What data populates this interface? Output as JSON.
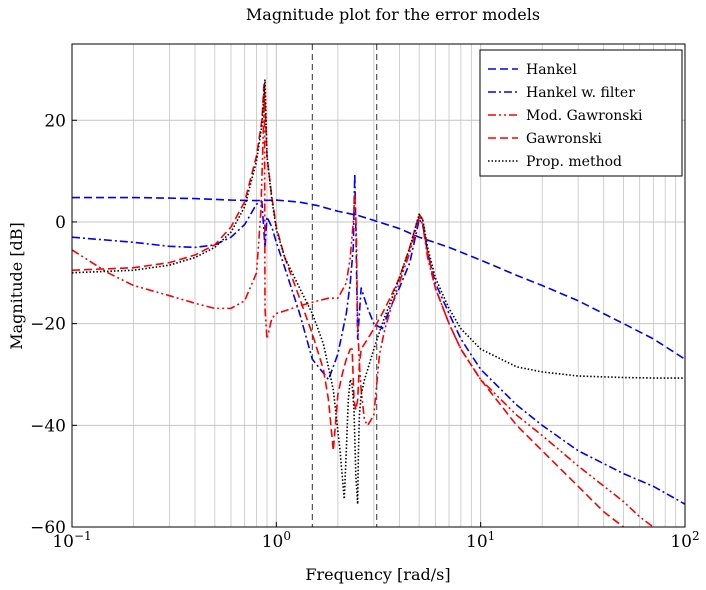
{
  "chart_data": {
    "type": "line",
    "title": "Magnitude plot for the error models",
    "xlabel": "Frequency [rad/s]",
    "ylabel": "Magnitude [dB]",
    "xscale": "log",
    "xlim": [
      0.1,
      100
    ],
    "ylim": [
      -60,
      35
    ],
    "grid": true,
    "legend_position": "top-right",
    "x_ticks": [
      {
        "value": 0.1,
        "base": "10",
        "exp": "−1"
      },
      {
        "value": 1,
        "base": "10",
        "exp": "0"
      },
      {
        "value": 10,
        "base": "10",
        "exp": "1"
      },
      {
        "value": 100,
        "base": "10",
        "exp": "2"
      }
    ],
    "y_ticks": [
      {
        "value": -60,
        "label": "−60"
      },
      {
        "value": -40,
        "label": "−40"
      },
      {
        "value": -20,
        "label": "−20"
      },
      {
        "value": 0,
        "label": "0"
      },
      {
        "value": 20,
        "label": "20"
      }
    ],
    "vertical_lines": [
      1.5,
      3.1
    ],
    "series": [
      {
        "name": "Hankel",
        "color": "#0000ff",
        "dash": "dashed",
        "x": [
          0.1,
          0.2,
          0.4,
          0.6,
          0.8,
          1.0,
          1.3,
          1.6,
          2.0,
          2.5,
          3.0,
          4.0,
          5.0,
          7.0,
          10,
          15,
          20,
          30,
          50,
          70,
          100
        ],
        "y": [
          4.8,
          4.8,
          4.6,
          4.3,
          4.2,
          4.3,
          3.9,
          3.2,
          2.1,
          1.3,
          0.3,
          -1.3,
          -3.0,
          -5.0,
          -7.5,
          -10.5,
          -12.5,
          -15.5,
          -20.0,
          -23.0,
          -27.0
        ]
      },
      {
        "name": "Hankel w. filter",
        "color": "#0000ff",
        "dash": "dashdot",
        "x": [
          0.1,
          0.2,
          0.3,
          0.4,
          0.5,
          0.6,
          0.7,
          0.8,
          0.85,
          0.88,
          0.9,
          0.95,
          1.0,
          1.1,
          1.3,
          1.5,
          1.8,
          2.0,
          2.2,
          2.3,
          2.38,
          2.42,
          2.46,
          2.5,
          2.6,
          2.8,
          3.0,
          3.3,
          3.6,
          4.0,
          4.5,
          5.0,
          5.2,
          5.5,
          6.0,
          7.0,
          8.0,
          10,
          15,
          20,
          30,
          50,
          70,
          100
        ],
        "y": [
          -3.0,
          -4.0,
          -4.8,
          -5.0,
          -4.5,
          -3.0,
          -0.5,
          3.5,
          4.0,
          -5.0,
          1.0,
          -1.0,
          -4.0,
          -9.0,
          -18.0,
          -27.0,
          -31.0,
          -26.0,
          -18.0,
          -12.0,
          -5.0,
          9.5,
          -5.0,
          -23.0,
          -13.0,
          -17.0,
          -20.0,
          -21.0,
          -17.0,
          -13.0,
          -8.0,
          0.5,
          -0.5,
          -6.0,
          -12.0,
          -18.0,
          -23.0,
          -29.0,
          -36.0,
          -40.0,
          -45.0,
          -49.5,
          -52.0,
          -55.5
        ]
      },
      {
        "name": "Mod. Gawronski",
        "color": "#ff0000",
        "dash": "dashdotdot",
        "x": [
          0.1,
          0.15,
          0.2,
          0.3,
          0.4,
          0.5,
          0.6,
          0.7,
          0.8,
          0.84,
          0.87,
          0.875,
          0.88,
          0.9,
          0.95,
          1.0,
          1.1,
          1.3,
          1.6,
          1.8,
          2.0,
          2.2,
          2.3,
          2.38,
          2.42,
          2.46,
          2.5,
          2.55,
          2.6,
          2.7,
          2.8,
          3.0,
          3.2,
          3.4,
          3.7,
          4.0,
          4.5,
          5.0,
          5.2,
          5.5,
          6.0,
          7.0,
          8.0,
          10,
          15,
          20,
          30,
          50,
          60,
          70
        ],
        "y": [
          -5.5,
          -10.0,
          -12.5,
          -14.5,
          -16.0,
          -17.0,
          -17.0,
          -15.5,
          -10.0,
          2.0,
          22.0,
          27.0,
          -17.0,
          -23.0,
          -19.0,
          -18.0,
          -17.5,
          -16.5,
          -15.5,
          -15.0,
          -15.0,
          -12.0,
          -7.0,
          0.0,
          5.5,
          -1.0,
          -20.0,
          -28.0,
          -33.0,
          -39.0,
          -40.0,
          -38.0,
          -26.0,
          -21.0,
          -16.0,
          -12.0,
          -6.0,
          1.0,
          -0.5,
          -7.0,
          -13.0,
          -20.0,
          -25.0,
          -31.0,
          -38.0,
          -42.0,
          -48.0,
          -55.0,
          -58.0,
          -60.0
        ]
      },
      {
        "name": "Gawronski",
        "color": "#ff0000",
        "dash": "dashed",
        "x": [
          0.1,
          0.2,
          0.3,
          0.4,
          0.5,
          0.6,
          0.7,
          0.8,
          0.85,
          0.87,
          0.88,
          0.9,
          0.95,
          1.0,
          1.1,
          1.3,
          1.5,
          1.7,
          1.8,
          1.9,
          2.0,
          2.1,
          2.2,
          2.3,
          2.35,
          2.4,
          2.45,
          2.5,
          2.55,
          2.6,
          2.7,
          2.8,
          3.0,
          3.3,
          3.6,
          4.0,
          4.5,
          4.8,
          5.0,
          5.2,
          5.5,
          6.0,
          7.0,
          8.0,
          10,
          15,
          20,
          30,
          40,
          50
        ],
        "y": [
          -9.5,
          -9.0,
          -8.0,
          -6.5,
          -4.5,
          -1.0,
          4.0,
          13.0,
          20.0,
          27.0,
          24.0,
          13.0,
          5.0,
          -1.0,
          -7.0,
          -15.0,
          -22.0,
          -29.0,
          -35.0,
          -45.0,
          -34.0,
          -30.0,
          -27.0,
          -25.0,
          -25.0,
          -35.0,
          -37.0,
          -35.0,
          -28.0,
          -25.0,
          -24.0,
          -23.0,
          -21.0,
          -18.0,
          -15.0,
          -11.0,
          -5.0,
          -1.0,
          1.5,
          0.5,
          -6.0,
          -13.0,
          -20.0,
          -25.0,
          -31.0,
          -40.0,
          -45.0,
          -52.0,
          -57.0,
          -60.0
        ]
      },
      {
        "name": "Prop. method",
        "color": "#000000",
        "dash": "dotted",
        "x": [
          0.1,
          0.2,
          0.3,
          0.4,
          0.5,
          0.6,
          0.7,
          0.8,
          0.85,
          0.87,
          0.88,
          0.9,
          0.95,
          1.0,
          1.1,
          1.3,
          1.5,
          1.7,
          1.9,
          2.05,
          2.15,
          2.2,
          2.25,
          2.3,
          2.35,
          2.4,
          2.45,
          2.5,
          2.52,
          2.55,
          2.6,
          2.7,
          2.8,
          3.0,
          3.3,
          3.6,
          4.0,
          4.5,
          4.8,
          5.0,
          5.2,
          5.5,
          6.0,
          7.0,
          8.0,
          10,
          15,
          20,
          30,
          50,
          70,
          100
        ],
        "y": [
          -10.0,
          -9.5,
          -8.5,
          -7.0,
          -5.0,
          -2.0,
          3.0,
          12.0,
          19.0,
          25.5,
          28.0,
          13.0,
          4.5,
          -1.5,
          -7.0,
          -13.0,
          -18.0,
          -24.0,
          -33.0,
          -45.0,
          -54.5,
          -45.0,
          -35.0,
          -31.0,
          -32.0,
          -37.0,
          -50.0,
          -55.5,
          -46.0,
          -38.0,
          -34.0,
          -31.0,
          -29.0,
          -25.0,
          -20.0,
          -16.0,
          -11.0,
          -5.0,
          -1.0,
          1.5,
          0.5,
          -5.0,
          -11.0,
          -17.0,
          -21.0,
          -25.0,
          -28.5,
          -29.5,
          -30.3,
          -30.6,
          -30.7,
          -30.7
        ]
      }
    ]
  }
}
